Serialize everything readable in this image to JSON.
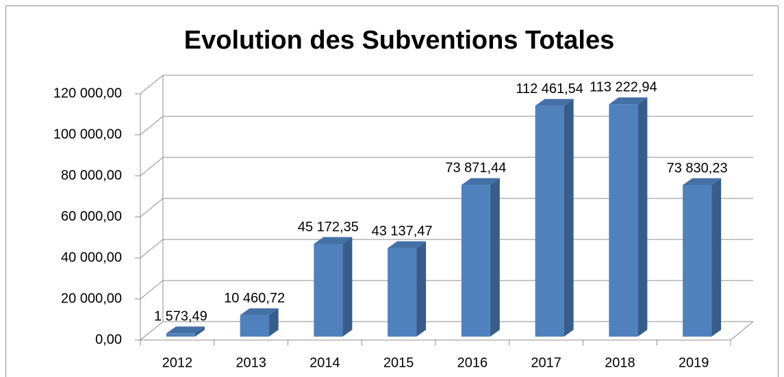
{
  "chart_data": {
    "type": "bar3d",
    "title": "Evolution des Subventions Totales",
    "categories": [
      "2012",
      "2013",
      "2014",
      "2015",
      "2016",
      "2017",
      "2018",
      "2019"
    ],
    "values": [
      1573.49,
      10460.72,
      45172.35,
      43137.47,
      73871.44,
      112461.54,
      113222.94,
      73830.23
    ],
    "value_labels": [
      "1 573,49",
      "10 460,72",
      "45 172,35",
      "43 137,47",
      "73 871,44",
      "112 461,54",
      "113 222,94",
      "73 830,23"
    ],
    "color": "#4f81bd",
    "ylim": [
      0,
      120000
    ],
    "yticks": [
      {
        "value": 0,
        "label": "0,00"
      },
      {
        "value": 20000,
        "label": "20 000,00"
      },
      {
        "value": 40000,
        "label": "40 000,00"
      },
      {
        "value": 60000,
        "label": "60 000,00"
      },
      {
        "value": 80000,
        "label": "80 000,00"
      },
      {
        "value": 100000,
        "label": "100 000,00"
      },
      {
        "value": 120000,
        "label": "120 000,00"
      }
    ],
    "grid": true
  }
}
